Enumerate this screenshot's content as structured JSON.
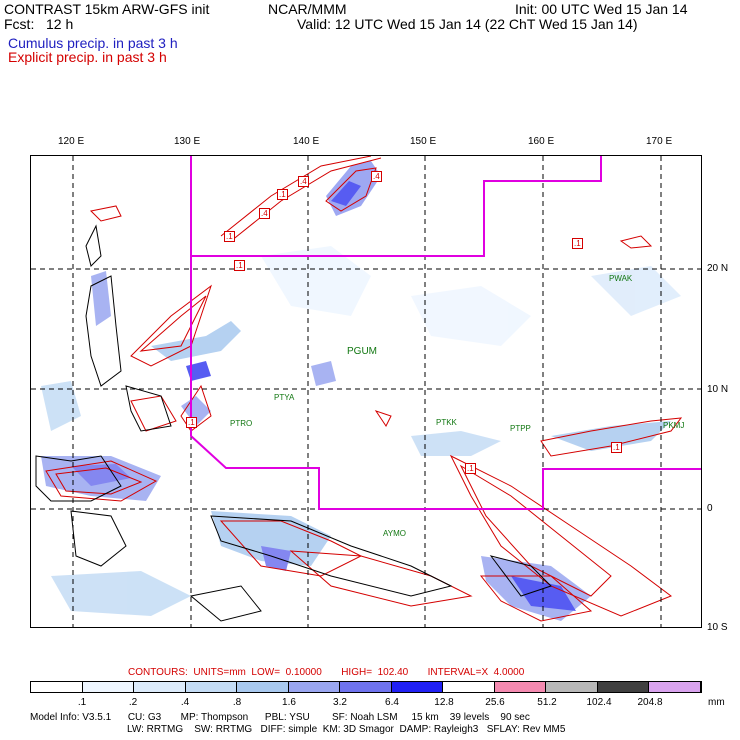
{
  "header": {
    "title_left": "CONTRAST 15km ARW-GFS init",
    "title_mid": "NCAR/MMM",
    "init": "Init: 00 UTC Wed 15 Jan 14",
    "fcst": "Fcst:   12 h",
    "valid": "Valid: 12 UTC Wed 15 Jan 14 (22 ChT Wed 15 Jan 14)",
    "cumulus": "Cumulus precip. in past 3 h",
    "explicit": "Explicit precip. in past 3 h"
  },
  "colors": {
    "cumulus": "#2020c0",
    "explicit": "#d40000",
    "boundary": "#e000e0",
    "station": "#117711"
  },
  "map": {
    "lon_labels": [
      "120 E",
      "130 E",
      "140 E",
      "150 E",
      "160 E",
      "170 E"
    ],
    "lat_labels": [
      "20 N",
      "10 N",
      "0",
      "10 S"
    ],
    "stations": [
      "PWAK",
      "PGUM",
      "PTYA",
      "PTRO",
      "PTKK",
      "PTPP",
      "PKMJ",
      "AYMO"
    ],
    "contour_boxes": [
      ".4",
      ".4",
      ".1",
      ".4",
      ".1",
      ".1",
      ".1",
      ".1",
      ".1",
      ".1"
    ]
  },
  "footer": {
    "contours": "CONTOURS:  UNITS=mm  LOW=  0.10000       HIGH=  102.40       INTERVAL=X  4.0000",
    "colorbar_labels": [
      ".1",
      ".2",
      ".4",
      ".8",
      "1.6",
      "3.2",
      "6.4",
      "12.8",
      "25.6",
      "51.2",
      "102.4",
      "204.8"
    ],
    "colorbar_unit": "mm",
    "colorbar_colors": [
      "#ffffff",
      "#eef6ff",
      "#dcebfb",
      "#c4dcf5",
      "#a9c9ef",
      "#9aa6f0",
      "#6f73ee",
      "#2020f4",
      "#ffffff",
      "#f48ab0",
      "#b8b8b8",
      "#404040",
      "#d9a3ee"
    ],
    "model_info_1": "Model Info: V3.5.1      CU: G3       MP: Thompson      PBL: YSU        SF: Noah LSM     15 km    39 levels    90 sec",
    "model_info_2": "LW: RRTMG    SW: RRTMG   DIFF: simple  KM: 3D Smagor  DAMP: Rayleigh3   SFLAY: Rev MM5"
  }
}
